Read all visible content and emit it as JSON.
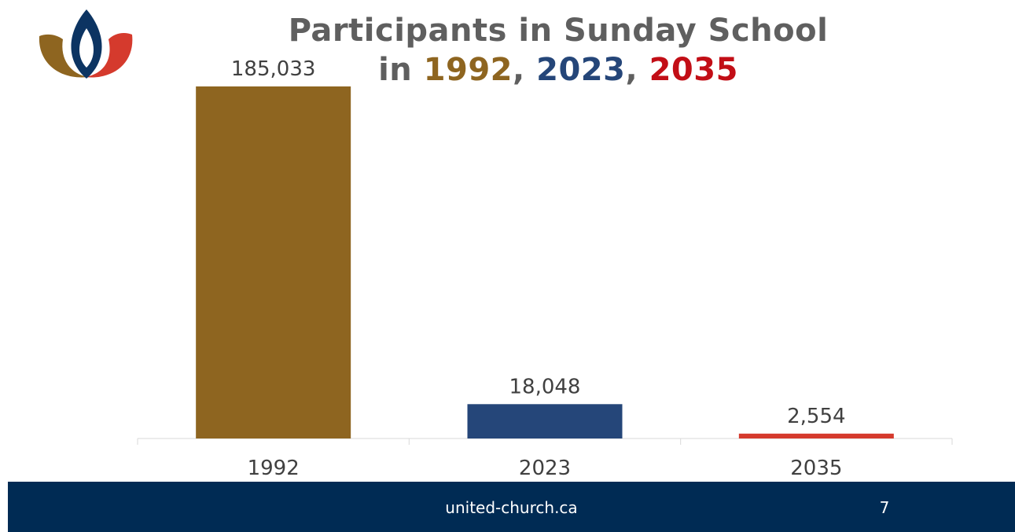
{
  "title": {
    "line1": "Participants in Sunday School",
    "prefix": "in ",
    "years": [
      "1992",
      "2023",
      "2035"
    ],
    "sep": ", "
  },
  "chart_data": {
    "type": "bar",
    "categories": [
      "1992",
      "2023",
      "2035"
    ],
    "values": [
      185033,
      18048,
      2554
    ],
    "value_labels": [
      "185,033",
      "18,048",
      "2,554"
    ],
    "colors": [
      "#8e6520",
      "#254679",
      "#d53a2d"
    ],
    "ylim": [
      0,
      185033
    ],
    "grid": false,
    "legend": "none"
  },
  "footer": {
    "url": "united-church.ca",
    "page": "7"
  },
  "colors": {
    "title_gray": "#5f5f5f",
    "footer_bg": "#002b54"
  },
  "logo": {
    "icon": "united-church-flame-logo"
  }
}
